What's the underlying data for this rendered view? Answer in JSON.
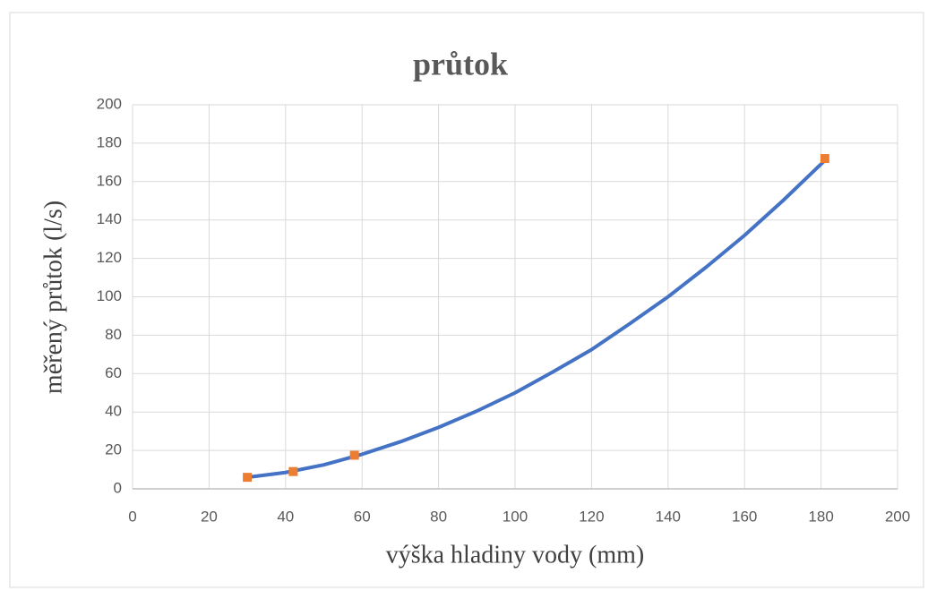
{
  "chart_data": {
    "type": "scatter",
    "title": "průtok",
    "xlabel": "výška hladiny vody (mm)",
    "ylabel": "měřený průtok (l/s)",
    "xlim": [
      0,
      200
    ],
    "xticks": [
      0,
      20,
      40,
      60,
      80,
      100,
      120,
      140,
      160,
      180,
      200
    ],
    "ylim": [
      0,
      200
    ],
    "yticks": [
      0,
      20,
      40,
      60,
      80,
      100,
      120,
      140,
      160,
      180,
      200
    ],
    "grid": true,
    "series": [
      {
        "color": "#4472c4",
        "marker": "line",
        "x": [
          30,
          40,
          50,
          60,
          70,
          80,
          90,
          100,
          110,
          120,
          130,
          140,
          150,
          160,
          170,
          181
        ],
        "values": [
          6,
          8.5,
          12.5,
          18,
          24.5,
          32,
          40.5,
          50,
          61,
          72.5,
          86,
          100,
          115.5,
          132,
          150,
          171
        ]
      },
      {
        "color": "#ed7d31",
        "marker": "square",
        "x": [
          30,
          42,
          58,
          181
        ],
        "values": [
          6,
          9,
          17.5,
          172
        ]
      }
    ]
  }
}
